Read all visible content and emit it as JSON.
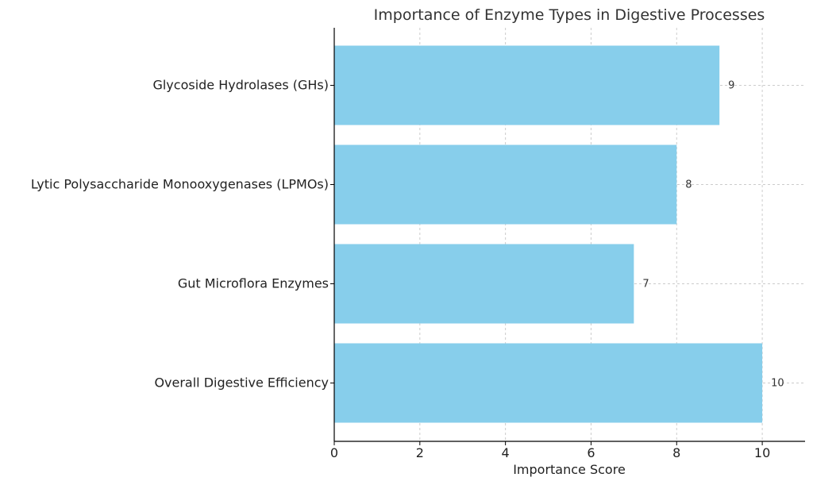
{
  "chart_data": {
    "type": "bar",
    "orientation": "horizontal",
    "title": "Importance of Enzyme Types in Digestive Processes",
    "xlabel": "Importance Score",
    "ylabel": "",
    "categories": [
      "Glycoside Hydrolases (GHs)",
      "Lytic Polysaccharide Monooxygenases (LPMOs)",
      "Gut Microflora Enzymes",
      "Overall Digestive Efficiency"
    ],
    "values": [
      9,
      8,
      7,
      10
    ],
    "value_labels": [
      "9",
      "8",
      "7",
      "10"
    ],
    "xlim": [
      0,
      11
    ],
    "xticks": [
      0,
      2,
      4,
      6,
      8,
      10
    ],
    "xtick_labels": [
      "0",
      "2",
      "4",
      "6",
      "8",
      "10"
    ],
    "grid": true,
    "bar_color": "#87CEEB",
    "grid_color": "#cccccc",
    "axis_color": "#000000"
  }
}
